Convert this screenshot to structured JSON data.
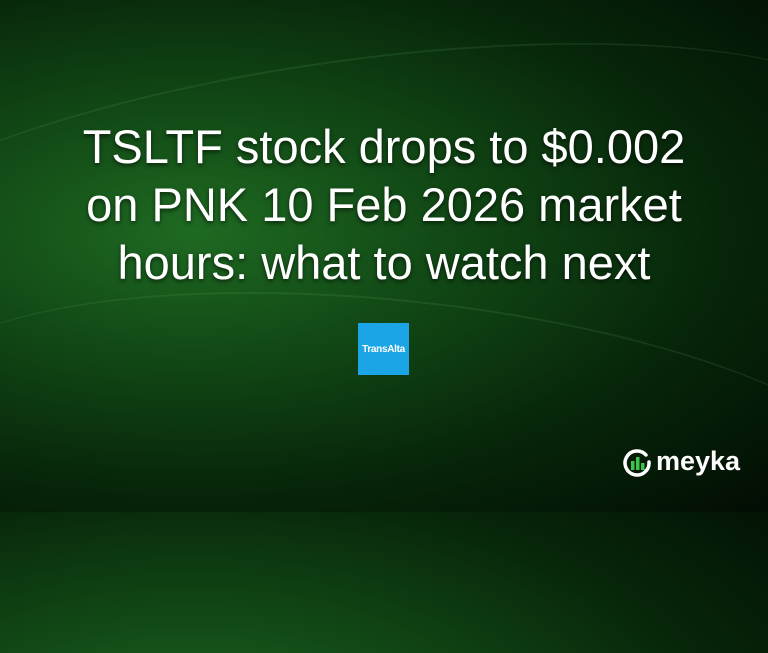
{
  "headline": [
    "TSLTF stock drops to $0.002",
    "on PNK 10 Feb 2026 market",
    "hours: what to watch next"
  ],
  "logo": {
    "text": "TransAlta",
    "color": "#1ca5e6"
  },
  "brand": {
    "name": "meyka",
    "icon": "meyka-chart-icon",
    "accent": "#3ec44a"
  }
}
